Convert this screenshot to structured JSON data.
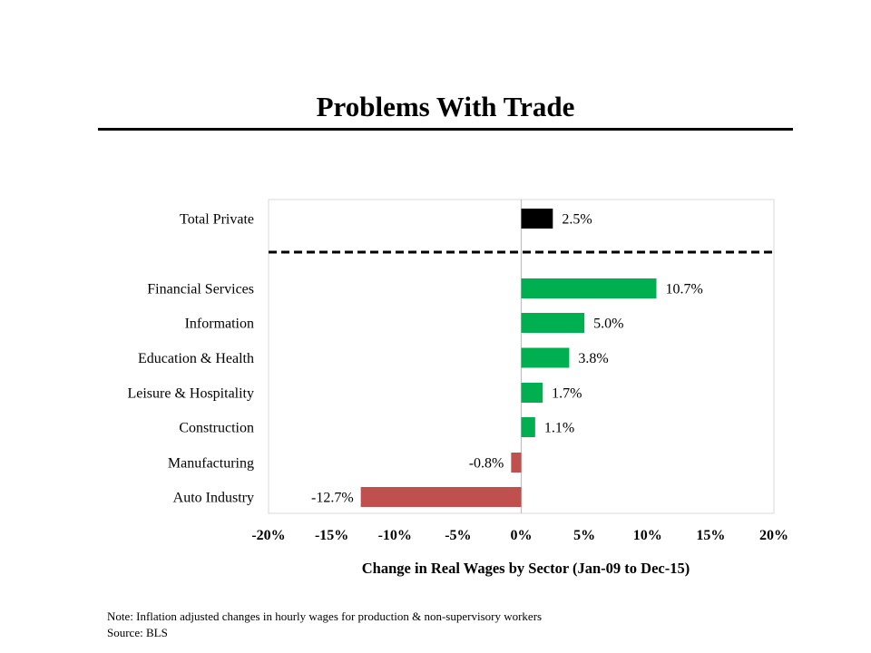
{
  "slide": {
    "title": "Problems With Trade",
    "note": "Note: Inflation adjusted changes in hourly wages for production & non-supervisory workers",
    "source": "Source: BLS"
  },
  "colors": {
    "total": "#000000",
    "positive": "#00b050",
    "negative": "#c0504d",
    "grid_border": "#d9d9d9",
    "axis": "#bfbfbf"
  },
  "chart_data": {
    "type": "bar",
    "orientation": "horizontal",
    "xlabel": "Change in Real Wages by Sector (Jan-09 to Dec-15)",
    "xlim": [
      -20,
      20
    ],
    "x_ticks": [
      "-20%",
      "-15%",
      "-10%",
      "-5%",
      "0%",
      "5%",
      "10%",
      "15%",
      "20%"
    ],
    "x_tick_values": [
      -20,
      -15,
      -10,
      -5,
      0,
      5,
      10,
      15,
      20
    ],
    "grid": false,
    "legend": "none",
    "categories": [
      "Total Private",
      "Financial Services",
      "Information",
      "Education & Health",
      "Leisure & Hospitality",
      "Construction",
      "Manufacturing",
      "Auto Industry"
    ],
    "values": [
      2.5,
      10.7,
      5.0,
      3.8,
      1.7,
      1.1,
      -0.8,
      -12.7
    ],
    "data_labels": [
      "2.5%",
      "10.7%",
      "5.0%",
      "3.8%",
      "1.7%",
      "1.1%",
      "-0.8%",
      "-12.7%"
    ],
    "separator": "dashed line between Total Private and sectors"
  }
}
